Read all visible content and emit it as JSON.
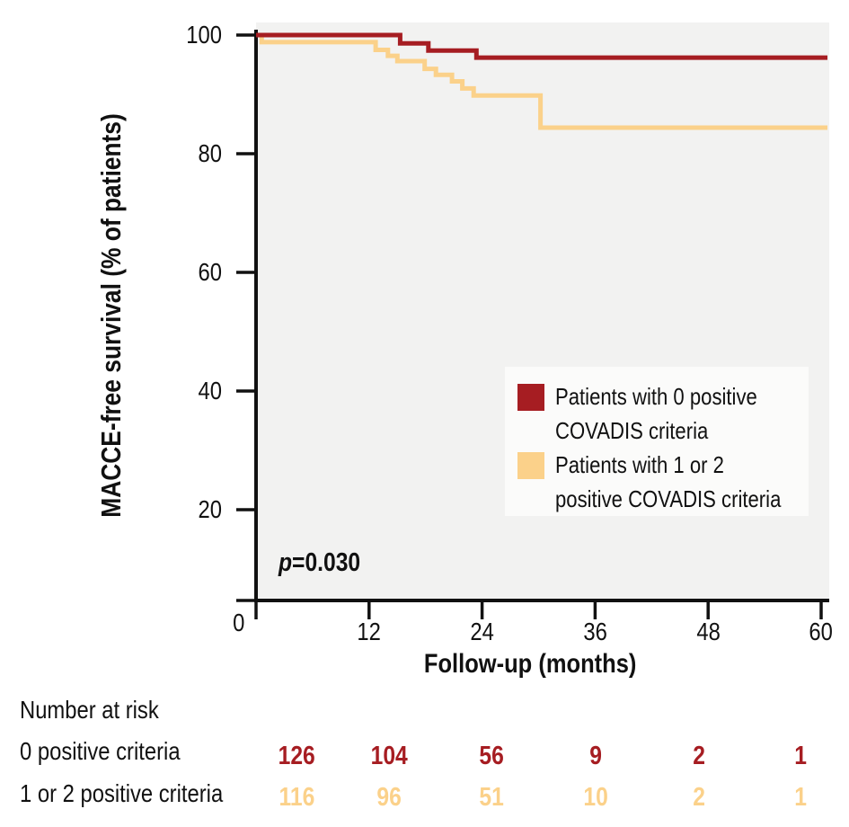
{
  "axes": {
    "y_title": "MACCE-free survival (% of patients)",
    "x_title": "Follow-up (months)"
  },
  "p_annotation": {
    "label": "p",
    "value": "=0.030"
  },
  "legend": {
    "items": [
      {
        "color": "#A61D22",
        "line1": "Patients with 0 positive",
        "line2": "COVADIS criteria"
      },
      {
        "color": "#FBD18A",
        "line1": "Patients with 1 or 2",
        "line2": "positive COVADIS criteria"
      }
    ]
  },
  "number_at_risk": {
    "title": "Number at risk",
    "timepoints": [
      0,
      12,
      24,
      36,
      48,
      60
    ],
    "rows": [
      {
        "label": "0 positive criteria",
        "color": "#A61D22",
        "values": [
          126,
          104,
          56,
          9,
          2,
          1
        ]
      },
      {
        "label": "1 or 2 positive criteria",
        "color": "#FBD18A",
        "values": [
          116,
          96,
          51,
          10,
          2,
          1
        ]
      }
    ]
  },
  "chart_data": {
    "type": "line",
    "subtype": "kaplan-meier-step",
    "title": "",
    "xlabel": "Follow-up (months)",
    "ylabel": "MACCE-free survival (% of patients)",
    "xlim": [
      0,
      60
    ],
    "ylim": [
      0,
      100
    ],
    "x_ticks": [
      0,
      12,
      24,
      36,
      48,
      60
    ],
    "y_ticks": [
      0,
      20,
      40,
      60,
      80,
      100
    ],
    "y_tick_labels_shown": [
      100,
      80,
      60,
      40,
      20
    ],
    "grid": false,
    "plot_background": "#F2F2F1",
    "legend_position": "inside-right",
    "annotation": {
      "text": "p=0.030"
    },
    "series": [
      {
        "name": "Patients with 0 positive COVADIS criteria",
        "color": "#A61D22",
        "points": [
          [
            0,
            100
          ],
          [
            15.3,
            98.6
          ],
          [
            18.3,
            97.4
          ],
          [
            23.4,
            96.2
          ],
          [
            60,
            96.2
          ]
        ]
      },
      {
        "name": "Patients with 1 or 2 positive COVADIS criteria",
        "color": "#FBD18A",
        "points": [
          [
            0,
            100
          ],
          [
            0.6,
            98.8
          ],
          [
            12.7,
            97.5
          ],
          [
            14.0,
            96.5
          ],
          [
            15.0,
            95.6
          ],
          [
            17.9,
            94.3
          ],
          [
            19.1,
            93.3
          ],
          [
            20.8,
            92.2
          ],
          [
            21.9,
            91.0
          ],
          [
            23.1,
            89.8
          ],
          [
            30.2,
            84.4
          ],
          [
            60,
            84.4
          ]
        ]
      }
    ],
    "number_at_risk": {
      "timepoints": [
        0,
        12,
        24,
        36,
        48,
        60
      ],
      "rows": [
        {
          "label": "0 positive criteria",
          "values": [
            126,
            104,
            56,
            9,
            2,
            1
          ]
        },
        {
          "label": "1 or 2 positive criteria",
          "values": [
            116,
            96,
            51,
            10,
            2,
            1
          ]
        }
      ]
    }
  }
}
